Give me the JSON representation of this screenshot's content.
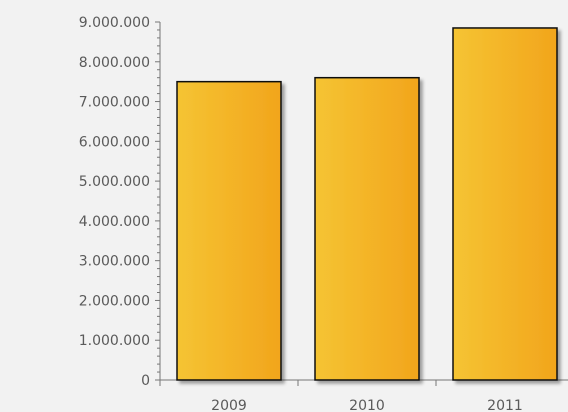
{
  "chart_data": {
    "type": "bar",
    "title": "",
    "xlabel": "",
    "ylabel": "",
    "categories": [
      "2009",
      "2010",
      "2011"
    ],
    "values": [
      7500000,
      7600000,
      8850000
    ],
    "ylim": [
      0,
      9000000
    ],
    "yticks": [
      0,
      1000000,
      2000000,
      3000000,
      4000000,
      5000000,
      6000000,
      7000000,
      8000000,
      9000000
    ],
    "ytick_labels": [
      "0",
      "1.000.000",
      "2.000.000",
      "3.000.000",
      "4.000.000",
      "5.000.000",
      "6.000.000",
      "7.000.000",
      "8.000.000",
      "9.000.000"
    ],
    "grid": false,
    "legend": "none",
    "colors": {
      "bar_gradient_start": "#f5c433",
      "bar_gradient_end": "#f2a51c",
      "bar_stroke": "#111111",
      "axis": "#777777",
      "background": "#f2f2f2",
      "text": "#5a5a5a"
    }
  }
}
